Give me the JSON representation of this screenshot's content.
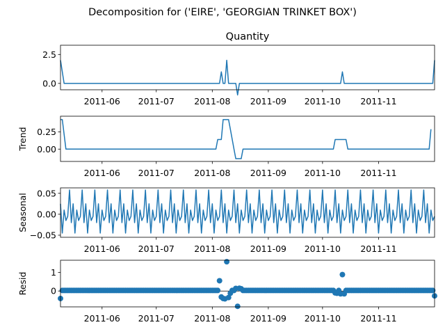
{
  "chart_data": {
    "type": "line",
    "title": "Decomposition for ('EIRE', 'GEORGIAN TRINKET BOX')",
    "x_ticks": [
      "2011-06",
      "2011-07",
      "2011-08",
      "2011-09",
      "2011-10",
      "2011-11"
    ],
    "x_range": [
      "2011-05-09",
      "2011-12-02"
    ],
    "line_color": "#1f77b4",
    "panels": [
      {
        "id": "observed",
        "title": "Quantity",
        "ylabel": "",
        "kind": "line",
        "ylim": [
          -0.55,
          3.3
        ],
        "yticks": [
          0.0,
          2.5
        ],
        "ytick_labels": [
          "0.0",
          "2.5"
        ],
        "x": [
          "2011-05-09",
          "2011-05-11",
          "2011-08-05",
          "2011-08-06",
          "2011-08-07",
          "2011-08-08",
          "2011-08-09",
          "2011-08-10",
          "2011-08-14",
          "2011-08-15",
          "2011-08-16",
          "2011-08-17",
          "2011-10-11",
          "2011-10-12",
          "2011-10-13",
          "2011-12-01",
          "2011-12-02"
        ],
        "values": [
          2.0,
          0,
          0,
          1.0,
          0,
          0,
          2.0,
          0,
          0,
          -1.0,
          0,
          0,
          0,
          1.0,
          0,
          0,
          2.0
        ]
      },
      {
        "id": "trend",
        "title": "",
        "ylabel": "Trend",
        "kind": "line",
        "ylim": [
          -0.18,
          0.48
        ],
        "yticks": [
          0.0,
          0.25
        ],
        "ytick_labels": [
          "0.00",
          "0.25"
        ],
        "x": [
          "2011-05-09",
          "2011-05-10",
          "2011-05-12",
          "2011-08-03",
          "2011-08-04",
          "2011-08-06",
          "2011-08-07",
          "2011-08-08",
          "2011-08-10",
          "2011-08-11",
          "2011-08-13",
          "2011-08-14",
          "2011-08-17",
          "2011-08-18",
          "2011-10-07",
          "2011-10-08",
          "2011-10-14",
          "2011-10-15",
          "2011-11-29",
          "2011-11-30"
        ],
        "values": [
          0.43,
          0.43,
          0,
          0,
          0.14,
          0.14,
          0.43,
          0.43,
          0.43,
          0.29,
          0,
          -0.14,
          -0.14,
          0,
          0,
          0.14,
          0.14,
          0,
          0,
          0.29
        ]
      },
      {
        "id": "seasonal",
        "title": "",
        "ylabel": "Seasonal",
        "kind": "seasonal",
        "ylim": [
          -0.055,
          0.063
        ],
        "yticks": [
          -0.05,
          0.0,
          0.05
        ],
        "ytick_labels": [
          "−0.05",
          "0.00",
          "0.05"
        ],
        "start": "2011-05-09",
        "end": "2011-12-02",
        "pattern": [
          0.025,
          -0.045,
          0.01,
          -0.015,
          -0.005,
          0.058,
          -0.02
        ]
      },
      {
        "id": "resid",
        "title": "",
        "ylabel": "Resid",
        "kind": "scatter",
        "ylim": [
          -0.85,
          1.65
        ],
        "yticks": [
          0,
          1
        ],
        "ytick_labels": [
          "0",
          "1"
        ],
        "default_value": 0.03,
        "points": [
          {
            "x": "2011-05-09",
            "y": -0.4
          },
          {
            "x": "2011-08-05",
            "y": 0.55
          },
          {
            "x": "2011-08-06",
            "y": -0.32
          },
          {
            "x": "2011-08-07",
            "y": -0.4
          },
          {
            "x": "2011-08-08",
            "y": -0.42
          },
          {
            "x": "2011-08-09",
            "y": 1.57
          },
          {
            "x": "2011-08-10",
            "y": -0.35
          },
          {
            "x": "2011-08-11",
            "y": -0.12
          },
          {
            "x": "2011-08-14",
            "y": 0.14
          },
          {
            "x": "2011-08-15",
            "y": -0.82
          },
          {
            "x": "2011-08-16",
            "y": 0.15
          },
          {
            "x": "2011-08-17",
            "y": 0.12
          },
          {
            "x": "2011-10-08",
            "y": -0.1
          },
          {
            "x": "2011-10-09",
            "y": -0.12
          },
          {
            "x": "2011-10-11",
            "y": -0.15
          },
          {
            "x": "2011-10-12",
            "y": 0.88
          },
          {
            "x": "2011-10-13",
            "y": -0.15
          },
          {
            "x": "2011-12-02",
            "y": -0.26
          }
        ]
      }
    ]
  }
}
